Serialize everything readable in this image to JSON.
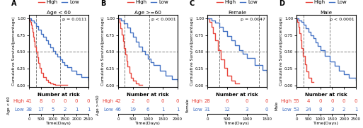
{
  "chart_data": [
    {
      "type": "step",
      "label": "A",
      "title": "Age < 60",
      "y_label": "Cumulative Survival(percentage)",
      "annotations": [
        "p = 0.0111"
      ],
      "series": [
        {
          "name": "High",
          "color": "#E8453C",
          "x": [
            0,
            30,
            60,
            90,
            120,
            150,
            180,
            210,
            250,
            300,
            350,
            400,
            450,
            500,
            600,
            700,
            800,
            900,
            1000,
            1100,
            1200,
            1400,
            1600
          ],
          "values": [
            1.0,
            0.97,
            0.94,
            0.9,
            0.85,
            0.8,
            0.73,
            0.66,
            0.58,
            0.5,
            0.42,
            0.34,
            0.26,
            0.19,
            0.13,
            0.08,
            0.05,
            0.03,
            0.02,
            0.01,
            0.01,
            0.01,
            0.01
          ]
        },
        {
          "name": "Low",
          "color": "#4472C4",
          "x": [
            0,
            100,
            200,
            300,
            400,
            500,
            600,
            700,
            800,
            900,
            1000,
            1100,
            1200,
            1300,
            1400,
            1500,
            1600,
            1800,
            2000,
            2200,
            2500
          ],
          "values": [
            1.0,
            0.97,
            0.93,
            0.88,
            0.83,
            0.77,
            0.72,
            0.67,
            0.62,
            0.57,
            0.52,
            0.47,
            0.43,
            0.39,
            0.35,
            0.31,
            0.27,
            0.22,
            0.17,
            0.13,
            0.09
          ]
        }
      ],
      "xlim": [
        0,
        2500
      ],
      "ylim": [
        -0.02,
        1.05
      ],
      "xticks": [
        0,
        500,
        1000,
        1500,
        2000,
        2500
      ],
      "yticks": [
        {
          "value": 0.0,
          "label": "0.00"
        },
        0.25,
        {
          "value": 0.5,
          "label": "0.50"
        },
        0.75,
        {
          "value": 1.0,
          "label": "1.00"
        }
      ],
      "tick_labels": "y",
      "legend": "top",
      "reference_lines": {
        "y": [
          0.5
        ],
        "x": [
          300,
          1300
        ],
        "color": "gray",
        "line_style": "dashed"
      },
      "risk_table": {
        "type": "table",
        "title": "Number at risk",
        "x_label": "Time(Days)",
        "row_group": "Age < 60",
        "xticks": [
          0,
          500,
          1000,
          1500,
          2000,
          2500
        ],
        "rows": [
          {
            "name": "High",
            "color": "#E8453C",
            "values": [
              41,
              8,
              0,
              0,
              0,
              0
            ]
          },
          {
            "name": "Low",
            "color": "#4472C4",
            "values": [
              38,
              17,
              5,
              2,
              1,
              1
            ]
          }
        ]
      }
    },
    {
      "type": "step",
      "label": "B",
      "title": "Age >=60",
      "y_label": "Cumulative Survival(percentage)",
      "annotations": [
        "p < 0.0001"
      ],
      "series": [
        {
          "name": "High",
          "color": "#E8453C",
          "x": [
            0,
            40,
            80,
            120,
            160,
            200,
            240,
            280,
            320,
            380,
            440,
            500,
            600,
            700,
            800
          ],
          "values": [
            1.0,
            0.93,
            0.85,
            0.76,
            0.66,
            0.56,
            0.46,
            0.37,
            0.28,
            0.19,
            0.12,
            0.07,
            0.03,
            0.01,
            0.01
          ]
        },
        {
          "name": "Low",
          "color": "#4472C4",
          "x": [
            0,
            100,
            200,
            300,
            400,
            500,
            600,
            700,
            800,
            900,
            1000,
            1100,
            1200,
            1400,
            1600,
            1800,
            2000
          ],
          "values": [
            1.0,
            0.97,
            0.92,
            0.86,
            0.79,
            0.72,
            0.65,
            0.58,
            0.52,
            0.46,
            0.4,
            0.35,
            0.3,
            0.22,
            0.15,
            0.1,
            0.06
          ]
        }
      ],
      "xlim": [
        0,
        2000
      ],
      "ylim": [
        -0.02,
        1.05
      ],
      "xticks": [
        0,
        500,
        1000,
        1500,
        2000
      ],
      "yticks": [
        {
          "value": 0.0,
          "label": "0.00"
        },
        0.25,
        {
          "value": 0.5,
          "label": "0.50"
        },
        0.75,
        {
          "value": 1.0,
          "label": "1.00"
        }
      ],
      "tick_labels": "y",
      "legend": "top",
      "reference_lines": {
        "y": [
          0.5
        ],
        "x": [
          210,
          1050
        ],
        "color": "gray",
        "line_style": "dashed"
      },
      "risk_table": {
        "type": "table",
        "title": "Number at risk",
        "x_label": "Time(Days)",
        "row_group": "Age >=60",
        "xticks": [
          0,
          500,
          1000,
          1500,
          2000
        ],
        "rows": [
          {
            "name": "High",
            "color": "#E8453C",
            "values": [
              42,
              2,
              0,
              0,
              0
            ]
          },
          {
            "name": "Low",
            "color": "#4472C4",
            "values": [
              46,
              19,
              6,
              1,
              1
            ]
          }
        ]
      }
    },
    {
      "type": "step",
      "label": "C",
      "title": "Female",
      "y_label": "Cumulative Survival(percentage)",
      "annotations": [
        "p = 0.0047"
      ],
      "series": [
        {
          "name": "High",
          "color": "#E8453C",
          "x": [
            0,
            50,
            100,
            150,
            200,
            270,
            340,
            420,
            500,
            600,
            700,
            800
          ],
          "values": [
            1.0,
            0.95,
            0.87,
            0.78,
            0.67,
            0.53,
            0.39,
            0.26,
            0.15,
            0.07,
            0.03,
            0.03
          ]
        },
        {
          "name": "Low",
          "color": "#4472C4",
          "x": [
            0,
            100,
            200,
            300,
            400,
            500,
            600,
            700,
            800,
            900,
            1000,
            1200,
            1400,
            1500
          ],
          "values": [
            1.0,
            0.97,
            0.93,
            0.87,
            0.81,
            0.74,
            0.67,
            0.6,
            0.53,
            0.47,
            0.41,
            0.31,
            0.23,
            0.2
          ]
        }
      ],
      "xlim": [
        0,
        1500
      ],
      "ylim": [
        -0.02,
        1.05
      ],
      "xticks": [
        0,
        500,
        1000,
        1500
      ],
      "yticks": [
        {
          "value": 0.0,
          "label": "0.00"
        },
        0.25,
        {
          "value": 0.5,
          "label": "0.50"
        },
        0.75,
        {
          "value": 1.0,
          "label": "1.00"
        }
      ],
      "tick_labels": "y",
      "legend": "top",
      "reference_lines": {
        "y": [
          0.5
        ],
        "x": [
          310,
          1300
        ],
        "color": "gray",
        "line_style": "dashed"
      },
      "risk_table": {
        "type": "table",
        "title": "Number at risk",
        "x_label": "Time(Days)",
        "row_group": "Female",
        "xticks": [
          0,
          500,
          1000,
          1500
        ],
        "rows": [
          {
            "name": "High",
            "color": "#E8453C",
            "values": [
              28,
              6,
              0,
              0
            ]
          },
          {
            "name": "Low",
            "color": "#4472C4",
            "values": [
              31,
              12,
              3,
              0
            ]
          }
        ]
      }
    },
    {
      "type": "step",
      "label": "D",
      "title": "Male",
      "y_label": "Cumulative Survival(percentage)",
      "annotations": [
        "p < 0.0001"
      ],
      "series": [
        {
          "name": "High",
          "color": "#E8453C",
          "x": [
            0,
            40,
            80,
            120,
            170,
            220,
            280,
            350,
            430,
            520,
            620,
            720
          ],
          "values": [
            1.0,
            0.94,
            0.87,
            0.78,
            0.67,
            0.56,
            0.44,
            0.32,
            0.21,
            0.12,
            0.05,
            0.05
          ]
        },
        {
          "name": "Low",
          "color": "#4472C4",
          "x": [
            0,
            100,
            200,
            300,
            400,
            500,
            600,
            700,
            800,
            900,
            1000,
            1200,
            1400,
            1600,
            1800,
            2000,
            2200,
            2500
          ],
          "values": [
            1.0,
            0.97,
            0.94,
            0.9,
            0.85,
            0.8,
            0.75,
            0.7,
            0.64,
            0.59,
            0.53,
            0.44,
            0.36,
            0.29,
            0.22,
            0.17,
            0.12,
            0.08
          ]
        }
      ],
      "xlim": [
        0,
        2500
      ],
      "ylim": [
        -0.02,
        1.05
      ],
      "xticks": [
        0,
        500,
        1000,
        1500,
        2000,
        2500
      ],
      "yticks": [
        {
          "value": 0.0,
          "label": "0.00"
        },
        0.25,
        {
          "value": 0.5,
          "label": "0.50"
        },
        0.75,
        {
          "value": 1.0,
          "label": "1.00"
        }
      ],
      "tick_labels": "y",
      "legend": "top",
      "reference_lines": {
        "y": [
          0.5
        ],
        "x": [
          290,
          1400
        ],
        "color": "gray",
        "line_style": "dashed"
      },
      "risk_table": {
        "type": "table",
        "title": "Number at risk",
        "x_label": "Time(Days)",
        "row_group": "Male",
        "xticks": [
          0,
          500,
          1000,
          1500,
          2000,
          2500
        ],
        "rows": [
          {
            "name": "High",
            "color": "#E8453C",
            "values": [
              55,
              4,
              0,
              0,
              0,
              0
            ]
          },
          {
            "name": "Low",
            "color": "#4472C4",
            "values": [
              53,
              24,
              8,
              3,
              2,
              1
            ]
          }
        ]
      }
    }
  ]
}
